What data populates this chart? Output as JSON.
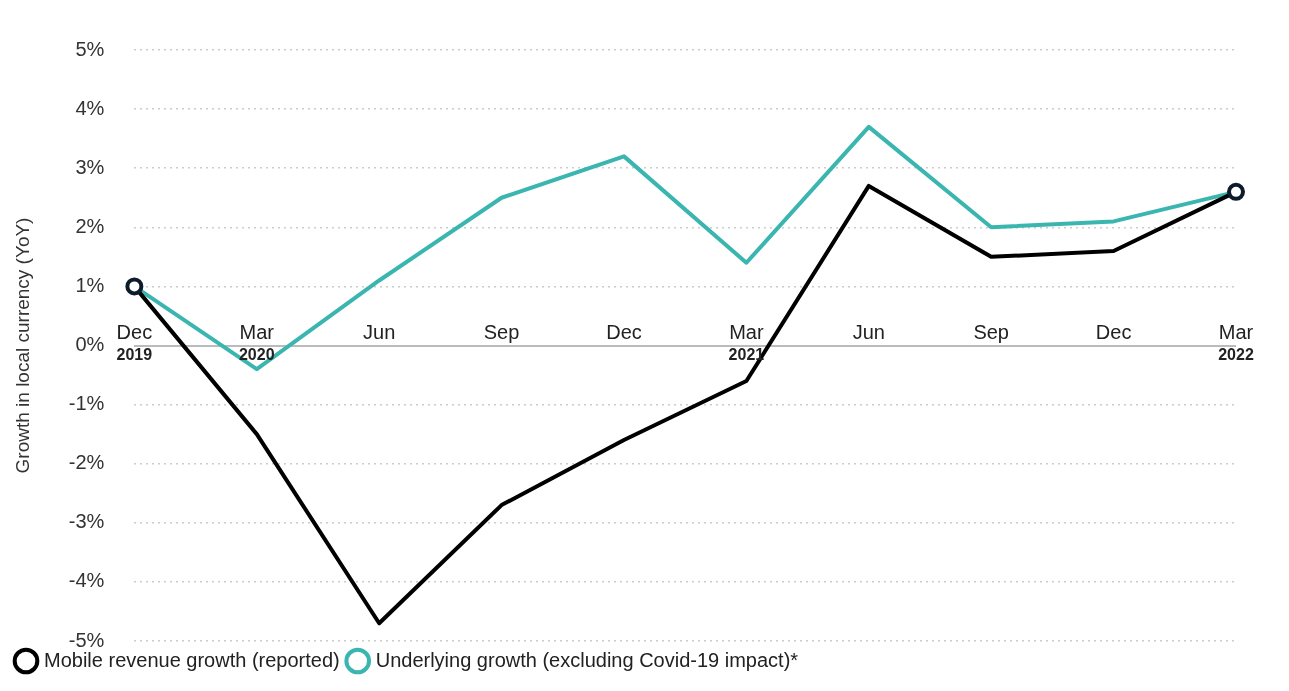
{
  "chart_data": {
    "type": "line",
    "ylabel": "Growth in local currency (YoY)",
    "categories": [
      "Dec 2019",
      "Mar 2020",
      "Jun",
      "Sep",
      "Dec",
      "Mar 2021",
      "Jun",
      "Sep",
      "Dec",
      "Mar 2022"
    ],
    "series": [
      {
        "name": "Mobile revenue growth (reported)",
        "color": "#000000",
        "values": [
          1.0,
          -1.5,
          -4.7,
          -2.7,
          -1.6,
          -0.6,
          2.7,
          1.5,
          1.6,
          2.6
        ]
      },
      {
        "name": "Underlying growth (excluding Covid-19 impact)*",
        "color": "#3ab5b0",
        "values": [
          1.0,
          -0.4,
          1.1,
          2.5,
          3.2,
          1.4,
          3.7,
          2.0,
          2.1,
          2.6
        ]
      }
    ],
    "ylim": [
      -5,
      5
    ],
    "yticks": [
      {
        "value": -5,
        "label": "-5%"
      },
      {
        "value": -4,
        "label": "-4%"
      },
      {
        "value": -3,
        "label": "-3%"
      },
      {
        "value": -2,
        "label": "-2%"
      },
      {
        "value": -1,
        "label": "-1%"
      },
      {
        "value": 0,
        "label": "0%"
      },
      {
        "value": 1,
        "label": "1%"
      },
      {
        "value": 2,
        "label": "2%"
      },
      {
        "value": 3,
        "label": "3%"
      },
      {
        "value": 4,
        "label": "4%"
      },
      {
        "value": 5,
        "label": "5%"
      }
    ],
    "grid": "y",
    "legend": "bottom left",
    "line_style": "solid"
  }
}
